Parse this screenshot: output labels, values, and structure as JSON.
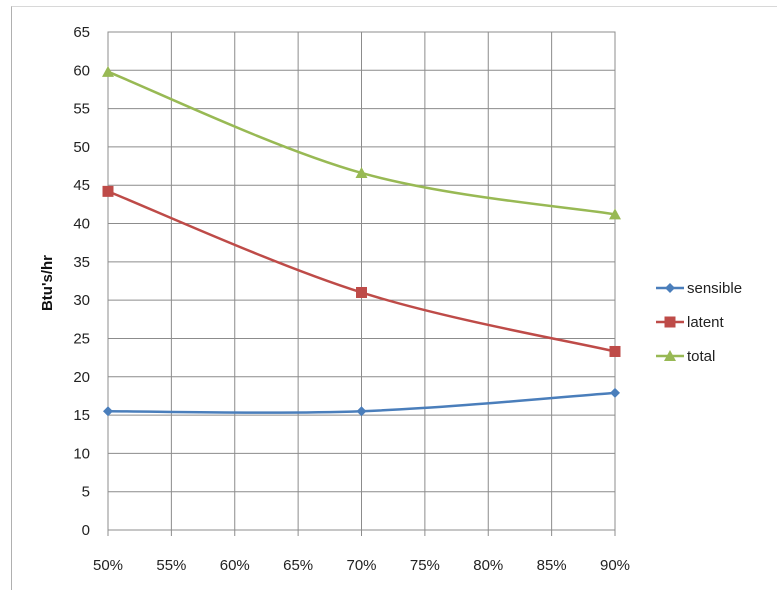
{
  "chart_data": {
    "type": "line",
    "title": "",
    "xlabel": "",
    "ylabel": "Btu's/hr",
    "categories": [
      "50%",
      "55%",
      "60%",
      "65%",
      "70%",
      "75%",
      "80%",
      "85%",
      "90%"
    ],
    "x": [
      50,
      70,
      90
    ],
    "ylim": [
      0,
      65
    ],
    "ystep": 5,
    "grid": true,
    "legend_position": "right",
    "series": [
      {
        "name": "sensible",
        "color": "#4a7ebb",
        "marker": "diamond",
        "values": [
          15.5,
          15.5,
          17.9
        ]
      },
      {
        "name": "latent",
        "color": "#be4b48",
        "marker": "square",
        "values": [
          44.2,
          31.0,
          23.3
        ]
      },
      {
        "name": "total",
        "color": "#98b954",
        "marker": "triangle",
        "values": [
          59.8,
          46.6,
          41.2
        ]
      }
    ]
  }
}
